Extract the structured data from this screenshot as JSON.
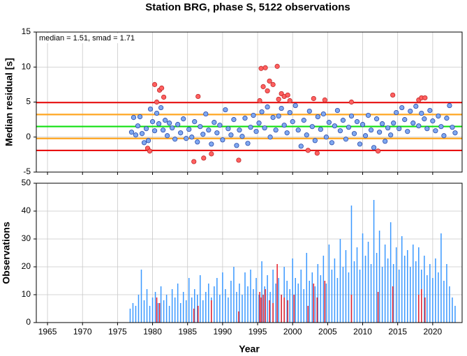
{
  "chart_data": [
    {
      "type": "scatter",
      "title": "Station BRG, phase S, 5122 observations",
      "ylabel": "Median residual [s]",
      "annotation": "median = 1.51, smad = 1.71",
      "xlim": [
        1963.4,
        2024.2
      ],
      "xticks": [
        1965,
        1970,
        1975,
        1980,
        1985,
        1990,
        1995,
        2000,
        2005,
        2010,
        2015,
        2020
      ],
      "ylim": [
        -5,
        15
      ],
      "yticks": [
        -5,
        0,
        5,
        10,
        15
      ],
      "grid": true,
      "hlines": [
        {
          "value": 4.93,
          "color": "#e81010"
        },
        {
          "value": -1.91,
          "color": "#e81010"
        },
        {
          "value": 3.22,
          "color": "#ffa520"
        },
        {
          "value": -0.2,
          "color": "#ffa520"
        },
        {
          "value": 1.51,
          "color": "#10e010"
        }
      ],
      "series": [
        {
          "color": "#7fa8f0",
          "edge": "#2848a8",
          "x": [
            1977.0,
            1977.3,
            1977.6,
            1977.9,
            1978.2,
            1978.5,
            1978.8,
            1979.1,
            1979.4,
            1979.7,
            1980.0,
            1980.3,
            1980.6,
            1980.9,
            1981.2,
            1981.5,
            1981.8,
            1982.1,
            1982.4,
            1982.8,
            1983.2,
            1983.6,
            1984.0,
            1984.4,
            1984.8,
            1985.2,
            1985.6,
            1986.0,
            1986.4,
            1986.8,
            1987.2,
            1987.6,
            1988.0,
            1988.4,
            1988.8,
            1989.2,
            1989.6,
            1990.0,
            1990.4,
            1990.8,
            1991.2,
            1991.6,
            1992.0,
            1992.4,
            1992.8,
            1993.2,
            1993.6,
            1994.0,
            1994.4,
            1994.8,
            1995.2,
            1995.6,
            1996.0,
            1996.4,
            1996.8,
            1997.2,
            1997.6,
            1998.0,
            1998.4,
            1998.8,
            1999.2,
            1999.6,
            2000.0,
            2000.4,
            2000.8,
            2001.2,
            2001.6,
            2002.0,
            2002.4,
            2002.8,
            2003.2,
            2003.6,
            2004.0,
            2004.4,
            2004.8,
            2005.2,
            2005.6,
            2006.0,
            2006.4,
            2006.8,
            2007.2,
            2007.6,
            2008.0,
            2008.4,
            2008.8,
            2009.2,
            2009.6,
            2010.0,
            2010.4,
            2010.8,
            2011.2,
            2011.6,
            2012.0,
            2012.4,
            2012.8,
            2013.2,
            2013.6,
            2014.0,
            2014.4,
            2014.8,
            2015.2,
            2015.6,
            2016.0,
            2016.4,
            2016.8,
            2017.2,
            2017.6,
            2018.0,
            2018.4,
            2018.8,
            2019.2,
            2019.6,
            2020.0,
            2020.4,
            2020.8,
            2021.2,
            2021.6,
            2022.0,
            2022.4,
            2022.8,
            2023.2
          ],
          "values": [
            0.7,
            2.8,
            0.3,
            1.6,
            2.9,
            0.5,
            -0.8,
            1.2,
            -0.5,
            4.0,
            2.2,
            0.9,
            3.4,
            1.9,
            4.2,
            1.0,
            2.4,
            0.2,
            2.0,
            1.3,
            -0.3,
            1.8,
            0.6,
            2.6,
            -0.2,
            1.1,
            0.0,
            2.2,
            -0.7,
            1.5,
            0.4,
            3.3,
            1.0,
            -1.0,
            2.1,
            0.6,
            1.7,
            -0.4,
            3.9,
            1.2,
            0.3,
            2.5,
            -1.2,
            1.0,
            0.1,
            2.7,
            -0.9,
            1.4,
            3.1,
            0.8,
            2.0,
            3.6,
            1.3,
            4.3,
            0.0,
            2.8,
            1.0,
            3.0,
            4.1,
            1.7,
            0.6,
            3.5,
            2.2,
            4.5,
            1.0,
            -1.3,
            2.4,
            0.3,
            3.7,
            1.5,
            -0.5,
            2.9,
            1.1,
            3.3,
            0.0,
            2.1,
            -0.8,
            1.6,
            3.8,
            0.9,
            2.4,
            -0.3,
            1.4,
            3.0,
            0.5,
            2.2,
            -1.0,
            1.8,
            0.2,
            3.1,
            1.0,
            -1.5,
            2.6,
            0.7,
            1.9,
            -0.6,
            1.3,
            0.3,
            2.0,
            3.5,
            1.2,
            4.2,
            2.5,
            0.8,
            3.7,
            2.0,
            4.4,
            1.6,
            3.4,
            2.6,
            1.2,
            3.8,
            2.3,
            0.9,
            3.0,
            1.5,
            0.2,
            2.7,
            4.5,
            1.4,
            0.6
          ]
        },
        {
          "color": "#ff6060",
          "edge": "#c02828",
          "x": [
            1979.3,
            1979.6,
            1980.3,
            1980.6,
            1981.0,
            1981.3,
            1981.6,
            1985.9,
            1986.5,
            1987.3,
            1988.4,
            1992.3,
            1995.3,
            1995.5,
            1995.8,
            1996.1,
            1996.4,
            1996.7,
            1997.2,
            1997.8,
            1998.0,
            1998.4,
            1998.8,
            1999.3,
            1999.6,
            2002.2,
            2003.0,
            2003.5,
            2004.6,
            2008.4,
            2012.2,
            2014.3,
            2018.0,
            2018.4,
            2018.9
          ],
          "values": [
            -1.6,
            -2.0,
            7.5,
            5.0,
            6.7,
            7.0,
            5.7,
            -3.5,
            5.8,
            -3.0,
            -2.4,
            -3.3,
            5.2,
            9.8,
            7.2,
            9.9,
            6.6,
            8.0,
            7.5,
            10.1,
            5.4,
            6.2,
            5.8,
            6.0,
            5.2,
            -1.9,
            5.5,
            -2.3,
            5.3,
            5.0,
            -2.0,
            6.0,
            5.3,
            5.6,
            5.6
          ]
        }
      ]
    },
    {
      "type": "bar",
      "xlabel": "Year",
      "ylabel": "Observations",
      "xlim": [
        1963.4,
        2024.2
      ],
      "xticks": [
        1965,
        1970,
        1975,
        1980,
        1985,
        1990,
        1995,
        2000,
        2005,
        2010,
        2015,
        2020
      ],
      "ylim": [
        0,
        50
      ],
      "yticks": [
        0,
        10,
        20,
        30,
        40,
        50
      ],
      "grid": true,
      "series": [
        {
          "color": "#3a98ff",
          "x": [
            1976.8,
            1977.2,
            1977.6,
            1978.0,
            1978.4,
            1978.8,
            1979.2,
            1979.6,
            1980.0,
            1980.4,
            1980.8,
            1981.2,
            1981.6,
            1982.0,
            1982.4,
            1982.8,
            1983.2,
            1983.6,
            1984.0,
            1984.4,
            1984.8,
            1985.2,
            1985.6,
            1986.0,
            1986.4,
            1986.8,
            1987.2,
            1987.6,
            1988.0,
            1988.4,
            1988.8,
            1989.2,
            1989.6,
            1990.0,
            1990.4,
            1990.8,
            1991.2,
            1991.6,
            1992.0,
            1992.4,
            1992.8,
            1993.2,
            1993.6,
            1994.0,
            1994.4,
            1994.8,
            1995.2,
            1995.6,
            1996.0,
            1996.4,
            1996.8,
            1997.2,
            1997.6,
            1998.0,
            1998.4,
            1998.8,
            1999.2,
            1999.6,
            2000.0,
            2000.4,
            2000.8,
            2001.2,
            2001.6,
            2002.0,
            2002.4,
            2002.8,
            2003.2,
            2003.6,
            2004.0,
            2004.4,
            2004.8,
            2005.2,
            2005.6,
            2006.0,
            2006.4,
            2006.8,
            2007.2,
            2007.6,
            2008.0,
            2008.4,
            2008.8,
            2009.2,
            2009.6,
            2010.0,
            2010.4,
            2010.8,
            2011.2,
            2011.6,
            2012.0,
            2012.4,
            2012.8,
            2013.2,
            2013.6,
            2014.0,
            2014.4,
            2014.8,
            2015.2,
            2015.6,
            2016.0,
            2016.4,
            2016.8,
            2017.2,
            2017.6,
            2018.0,
            2018.4,
            2018.8,
            2019.2,
            2019.6,
            2020.0,
            2020.4,
            2020.8,
            2021.2,
            2021.6,
            2022.0,
            2022.4,
            2022.8,
            2023.2
          ],
          "values": [
            5,
            7,
            6,
            10,
            19,
            8,
            12,
            6,
            9,
            11,
            7,
            13,
            8,
            10,
            6,
            12,
            9,
            14,
            7,
            11,
            8,
            16,
            9,
            12,
            10,
            17,
            8,
            11,
            14,
            9,
            13,
            16,
            10,
            18,
            12,
            9,
            15,
            20,
            11,
            14,
            10,
            18,
            13,
            19,
            12,
            16,
            10,
            22,
            13,
            17,
            11,
            19,
            14,
            16,
            10,
            20,
            15,
            12,
            23,
            16,
            14,
            19,
            12,
            25,
            15,
            18,
            13,
            21,
            17,
            24,
            14,
            28,
            19,
            23,
            16,
            30,
            20,
            26,
            18,
            42,
            22,
            27,
            19,
            32,
            24,
            29,
            21,
            44,
            25,
            33,
            20,
            28,
            23,
            36,
            21,
            27,
            19,
            31,
            24,
            26,
            20,
            28,
            22,
            27,
            19,
            24,
            17,
            21,
            16,
            23,
            18,
            32,
            15,
            21,
            13,
            9,
            6
          ]
        },
        {
          "color": "#e8202a",
          "x": [
            1980.6,
            1981.0,
            1985.9,
            1986.5,
            1988.4,
            1992.3,
            1995.3,
            1995.5,
            1995.8,
            1996.1,
            1996.7,
            1997.2,
            1997.8,
            1998.4,
            1998.8,
            1999.3,
            2000.2,
            2002.2,
            2003.0,
            2003.5,
            2004.6,
            2008.4,
            2012.2,
            2014.3,
            2018.0,
            2018.4,
            2018.9
          ],
          "values": [
            9,
            7,
            5,
            6,
            8,
            4,
            11,
            9,
            10,
            12,
            8,
            7,
            21,
            10,
            9,
            8,
            10,
            6,
            14,
            9,
            15,
            10,
            11,
            13,
            10,
            12,
            9
          ]
        }
      ]
    }
  ]
}
